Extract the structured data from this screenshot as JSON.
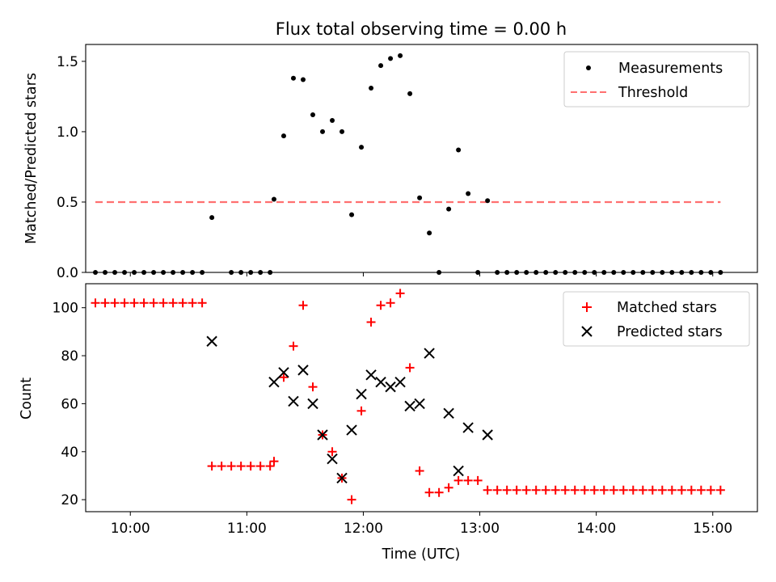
{
  "chart_data": [
    {
      "type": "scatter",
      "title": "Flux total observing time = 0.00 h",
      "xlabel": "",
      "ylabel": "Matched/Predicted stars",
      "ylim": [
        0,
        1.62
      ],
      "yticks": [
        "0.0",
        "0.5",
        "1.0",
        "1.5"
      ],
      "ytick_values": [
        0,
        0.5,
        1.0,
        1.5
      ],
      "x_time_range": [
        "09:37",
        "15:23"
      ],
      "legend_position": "upper right",
      "series": [
        {
          "name": "Measurements",
          "marker": "dot",
          "color": "#000000",
          "x": [
            "09:42",
            "09:47",
            "09:52",
            "09:57",
            "10:02",
            "10:07",
            "10:12",
            "10:17",
            "10:22",
            "10:27",
            "10:32",
            "10:37",
            "10:42",
            "10:52",
            "10:57",
            "11:02",
            "11:07",
            "11:12",
            "11:14",
            "11:19",
            "11:24",
            "11:29",
            "11:34",
            "11:39",
            "11:44",
            "11:49",
            "11:54",
            "11:59",
            "12:04",
            "12:09",
            "12:14",
            "12:19",
            "12:24",
            "12:29",
            "12:34",
            "12:39",
            "12:44",
            "12:49",
            "12:54",
            "12:59",
            "13:04",
            "13:09",
            "13:14",
            "13:19",
            "13:24",
            "13:29",
            "13:34",
            "13:39",
            "13:44",
            "13:49",
            "13:54",
            "13:59",
            "14:04",
            "14:09",
            "14:14",
            "14:19",
            "14:24",
            "14:29",
            "14:34",
            "14:39",
            "14:44",
            "14:49",
            "14:54",
            "14:59",
            "15:04"
          ],
          "y": [
            0,
            0,
            0,
            0,
            0,
            0,
            0,
            0,
            0,
            0,
            0,
            0,
            0.39,
            0,
            0,
            0,
            0,
            0,
            0.52,
            0.97,
            1.38,
            1.37,
            1.12,
            1.0,
            1.08,
            1.0,
            0.41,
            0.89,
            1.31,
            1.47,
            1.52,
            1.54,
            1.27,
            0.53,
            0.28,
            0,
            0.45,
            0.87,
            0.56,
            0,
            0.51,
            0,
            0,
            0,
            0,
            0,
            0,
            0,
            0,
            0,
            0,
            0,
            0,
            0,
            0,
            0,
            0,
            0,
            0,
            0,
            0,
            0,
            0,
            0,
            0
          ]
        },
        {
          "name": "Threshold",
          "style": "dashed",
          "color": "#ff7070",
          "x": [
            "09:42",
            "15:04"
          ],
          "y": [
            0.5,
            0.5
          ]
        }
      ]
    },
    {
      "type": "scatter",
      "title": "",
      "xlabel": "Time (UTC)",
      "ylabel": "Count",
      "ylim": [
        15,
        110
      ],
      "yticks": [
        "20",
        "40",
        "60",
        "80",
        "100"
      ],
      "ytick_values": [
        20,
        40,
        60,
        80,
        100
      ],
      "xticks": [
        "10:00",
        "11:00",
        "12:00",
        "13:00",
        "14:00",
        "15:00"
      ],
      "x_time_range": [
        "09:37",
        "15:23"
      ],
      "legend_position": "upper right",
      "series": [
        {
          "name": "Matched stars",
          "marker": "plus",
          "color": "#ff0000",
          "x": [
            "09:42",
            "09:47",
            "09:52",
            "09:57",
            "10:02",
            "10:07",
            "10:12",
            "10:17",
            "10:22",
            "10:27",
            "10:32",
            "10:37",
            "10:42",
            "10:47",
            "10:52",
            "10:57",
            "11:02",
            "11:07",
            "11:12",
            "11:14",
            "11:19",
            "11:24",
            "11:29",
            "11:34",
            "11:39",
            "11:44",
            "11:49",
            "11:54",
            "11:59",
            "12:04",
            "12:09",
            "12:14",
            "12:19",
            "12:24",
            "12:29",
            "12:34",
            "12:39",
            "12:44",
            "12:49",
            "12:54",
            "12:59",
            "13:04",
            "13:09",
            "13:14",
            "13:19",
            "13:24",
            "13:29",
            "13:34",
            "13:39",
            "13:44",
            "13:49",
            "13:54",
            "13:59",
            "14:04",
            "14:09",
            "14:14",
            "14:19",
            "14:24",
            "14:29",
            "14:34",
            "14:39",
            "14:44",
            "14:49",
            "14:54",
            "14:59",
            "15:04"
          ],
          "y": [
            102,
            102,
            102,
            102,
            102,
            102,
            102,
            102,
            102,
            102,
            102,
            102,
            34,
            34,
            34,
            34,
            34,
            34,
            34,
            36,
            71,
            84,
            101,
            67,
            47,
            40,
            29,
            20,
            57,
            94,
            101,
            102,
            106,
            75,
            32,
            23,
            23,
            25,
            28,
            28,
            28,
            24,
            24,
            24,
            24,
            24,
            24,
            24,
            24,
            24,
            24,
            24,
            24,
            24,
            24,
            24,
            24,
            24,
            24,
            24,
            24,
            24,
            24,
            24,
            24,
            24
          ]
        },
        {
          "name": "Predicted stars",
          "marker": "x",
          "color": "#000000",
          "x": [
            "10:42",
            "11:14",
            "11:19",
            "11:24",
            "11:29",
            "11:34",
            "11:39",
            "11:44",
            "11:49",
            "11:54",
            "11:59",
            "12:04",
            "12:09",
            "12:14",
            "12:19",
            "12:24",
            "12:29",
            "12:34",
            "12:44",
            "12:49",
            "12:54",
            "13:04"
          ],
          "y": [
            86,
            69,
            73,
            61,
            74,
            60,
            47,
            37,
            29,
            49,
            64,
            72,
            69,
            67,
            69,
            59,
            60,
            81,
            56,
            32,
            50,
            47
          ]
        }
      ]
    }
  ]
}
